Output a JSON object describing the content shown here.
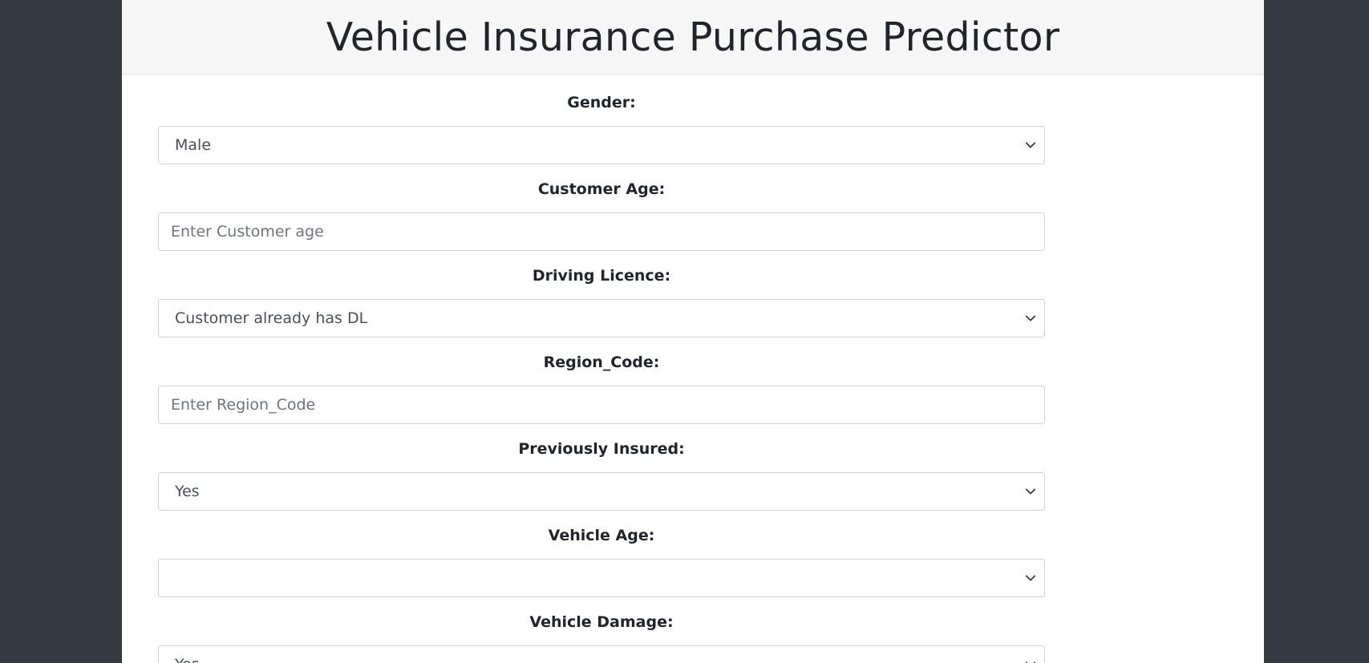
{
  "header": {
    "title": "Vehicle Insurance Purchase Predictor"
  },
  "form": {
    "gender": {
      "label": "Gender:",
      "selected": "Male"
    },
    "customer_age": {
      "label": "Customer Age:",
      "placeholder": "Enter Customer age"
    },
    "driving_licence": {
      "label": "Driving Licence:",
      "selected": "Customer already has DL"
    },
    "region_code": {
      "label": "Region_Code:",
      "placeholder": "Enter Region_Code"
    },
    "previously_insured": {
      "label": "Previously Insured:",
      "selected": "Yes"
    },
    "vehicle_age": {
      "label": "Vehicle Age:",
      "selected": ""
    },
    "vehicle_damage": {
      "label": "Vehicle Damage:",
      "selected": "Yes"
    }
  },
  "colors": {
    "page_background": "#343a40",
    "header_background": "#f7f7f7",
    "border": "#ced4da"
  },
  "icons": {
    "select_arrow": "chevron-down-icon"
  }
}
